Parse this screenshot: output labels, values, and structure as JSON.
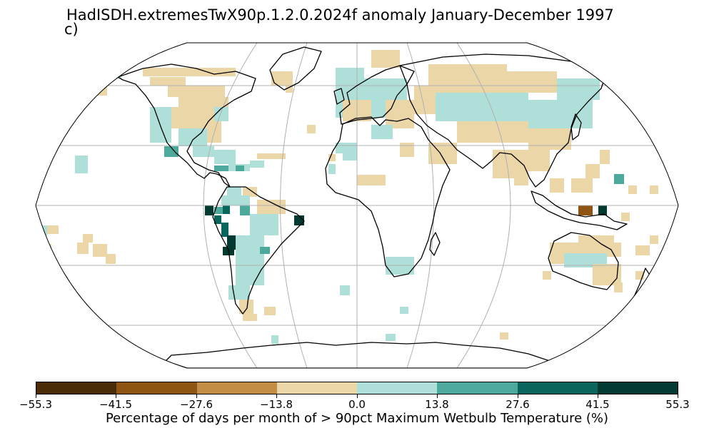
{
  "title": "HadISDH.extremesTwX90p.1.2.0.2024f anomaly January-December 1997",
  "panel_label": "c)",
  "colorbar": {
    "label": "Percentage of days per month of > 90pct Maximum Wetbulb Temperature (%)",
    "ticks": [
      "−55.3",
      "−41.5",
      "−27.6",
      "−13.8",
      "0.0",
      "13.8",
      "27.6",
      "41.5",
      "55.3"
    ],
    "colors": [
      "#4a2d08",
      "#8e5413",
      "#c48d45",
      "#ebd6a7",
      "#aee0d9",
      "#4ea99d",
      "#08665c",
      "#013a31"
    ]
  },
  "map": {
    "projection": "Robinson",
    "gridlines": true,
    "ocean_color": "#ffffff"
  },
  "chart_data": {
    "type": "heatmap",
    "variable": "Percentage of days per month of > 90pct Maximum Wetbulb Temperature (%)",
    "period": "January-December 1997",
    "value_range": [
      -55.3,
      55.3
    ]
  }
}
